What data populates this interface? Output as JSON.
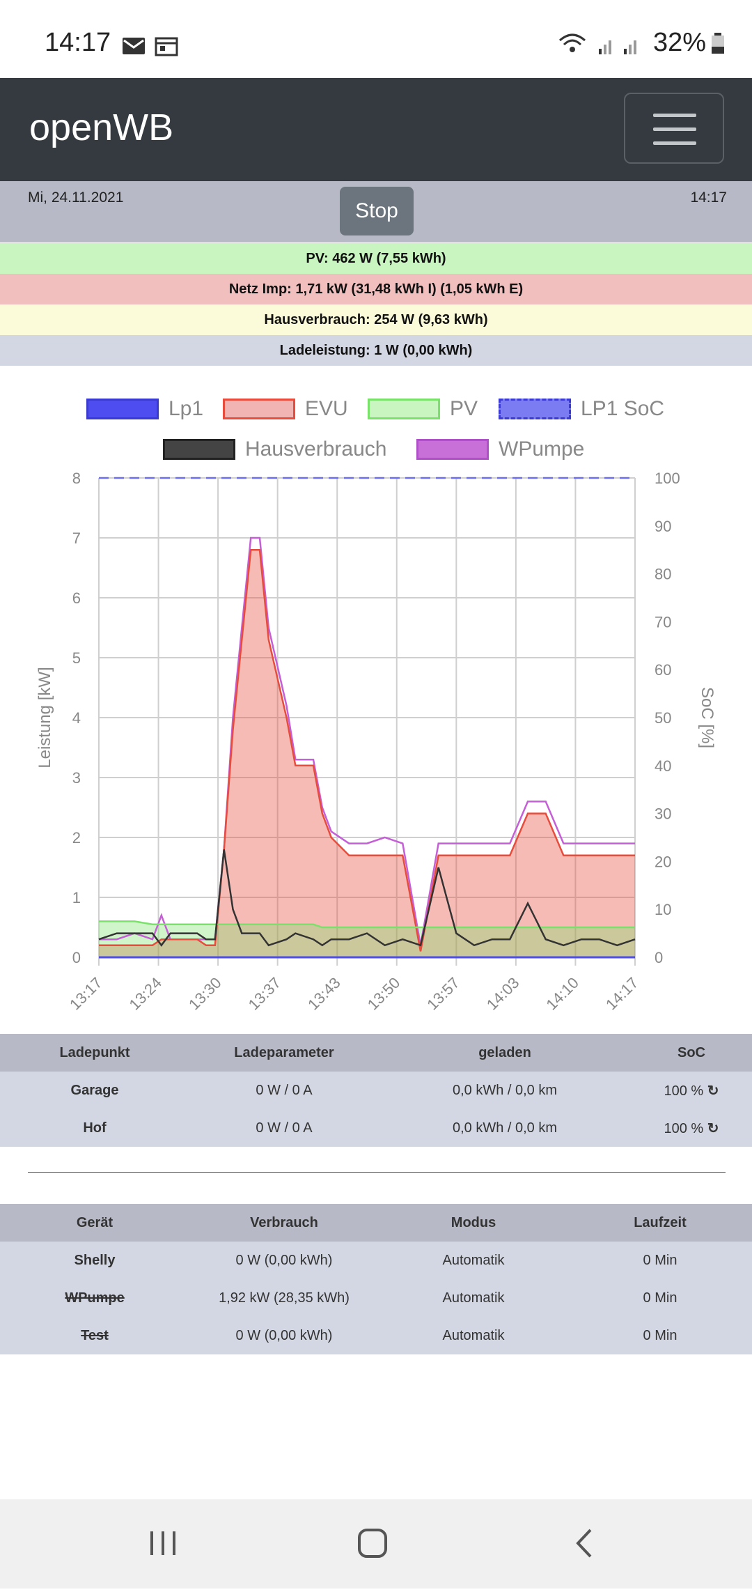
{
  "status": {
    "time": "14:17",
    "battery": "32%"
  },
  "app": {
    "title": "openWB"
  },
  "header": {
    "date": "Mi, 24.11.2021",
    "time": "14:17",
    "stop_label": "Stop"
  },
  "summary": {
    "pv": "PV: 462 W (7,55 kWh)",
    "netz": "Netz Imp: 1,71 kW (31,48 kWh I) (1,05 kWh E)",
    "haus": "Hausverbrauch: 254 W (9,63 kWh)",
    "lade": "Ladeleistung: 1 W (0,00 kWh)"
  },
  "colors": {
    "pv": "#c9f5c0",
    "netz": "#f2bfbf",
    "haus": "#fcfbd9",
    "lade": "#d3d7e3"
  },
  "chart_data": {
    "type": "area",
    "legend": [
      "Lp1",
      "EVU",
      "PV",
      "LP1 SoC",
      "Hausverbrauch",
      "WPumpe"
    ],
    "ylabel": "Leistung [kW]",
    "y2label": "SoC [%]",
    "ylim": [
      0,
      8
    ],
    "y2lim": [
      0,
      100
    ],
    "yticks": [
      "0",
      "1",
      "2",
      "3",
      "4",
      "5",
      "6",
      "7",
      "8"
    ],
    "y2ticks": [
      "0",
      "10",
      "20",
      "30",
      "40",
      "50",
      "60",
      "70",
      "80",
      "90",
      "100"
    ],
    "xticks": [
      "13:17",
      "13:24",
      "13:30",
      "13:37",
      "13:43",
      "13:50",
      "13:57",
      "14:03",
      "14:10",
      "14:17"
    ],
    "x": [
      0,
      2,
      4,
      6,
      7,
      8,
      10,
      11,
      12,
      13,
      14,
      15,
      16,
      17,
      18,
      19,
      21,
      22,
      24,
      25,
      26,
      28,
      30,
      32,
      34,
      36,
      38,
      40,
      41,
      42,
      44,
      46,
      48,
      50,
      52,
      54,
      56,
      58,
      60
    ],
    "series": [
      {
        "name": "EVU",
        "color": "#e74c3c",
        "values": [
          0.2,
          0.2,
          0.2,
          0.2,
          0.3,
          0.3,
          0.3,
          0.3,
          0.2,
          0.2,
          1.8,
          3.8,
          5.3,
          6.8,
          6.8,
          5.3,
          4.0,
          3.2,
          3.2,
          2.4,
          2.0,
          1.7,
          1.7,
          1.7,
          1.7,
          0.1,
          1.7,
          1.7,
          1.7,
          1.7,
          1.7,
          1.7,
          2.4,
          2.4,
          1.7,
          1.7,
          1.7,
          1.7,
          1.7
        ]
      },
      {
        "name": "PV",
        "color": "#7ae26a",
        "values": [
          0.6,
          0.6,
          0.6,
          0.55,
          0.55,
          0.55,
          0.55,
          0.55,
          0.55,
          0.55,
          0.55,
          0.55,
          0.55,
          0.55,
          0.55,
          0.55,
          0.55,
          0.55,
          0.55,
          0.5,
          0.5,
          0.5,
          0.5,
          0.5,
          0.5,
          0.5,
          0.5,
          0.5,
          0.5,
          0.5,
          0.5,
          0.5,
          0.5,
          0.5,
          0.5,
          0.5,
          0.5,
          0.5,
          0.5
        ]
      },
      {
        "name": "WPumpe",
        "color": "#c45fd6",
        "values": [
          0.3,
          0.3,
          0.4,
          0.3,
          0.7,
          0.3,
          0.3,
          0.3,
          0.3,
          0.3,
          1.8,
          4.0,
          5.5,
          7.0,
          7.0,
          5.5,
          4.2,
          3.3,
          3.3,
          2.5,
          2.1,
          1.9,
          1.9,
          2.0,
          1.9,
          0.2,
          1.9,
          1.9,
          1.9,
          1.9,
          1.9,
          1.9,
          2.6,
          2.6,
          1.9,
          1.9,
          1.9,
          1.9,
          1.9
        ]
      },
      {
        "name": "Hausverbrauch",
        "color": "#333333",
        "values": [
          0.3,
          0.4,
          0.4,
          0.4,
          0.2,
          0.4,
          0.4,
          0.4,
          0.3,
          0.3,
          1.8,
          0.8,
          0.4,
          0.4,
          0.4,
          0.2,
          0.3,
          0.4,
          0.3,
          0.2,
          0.3,
          0.3,
          0.4,
          0.2,
          0.3,
          0.2,
          1.5,
          0.4,
          0.3,
          0.2,
          0.3,
          0.3,
          0.9,
          0.3,
          0.2,
          0.3,
          0.3,
          0.2,
          0.3
        ]
      },
      {
        "name": "Lp1",
        "color": "#4e4ef0",
        "values": [
          0,
          0,
          0,
          0,
          0,
          0,
          0,
          0,
          0,
          0,
          0,
          0,
          0,
          0,
          0,
          0,
          0,
          0,
          0,
          0,
          0,
          0,
          0,
          0,
          0,
          0,
          0,
          0,
          0,
          0,
          0,
          0,
          0,
          0,
          0,
          0,
          0,
          0,
          0
        ]
      },
      {
        "name": "LP1 SoC",
        "color": "#6d6df0",
        "values": [
          100,
          100,
          100,
          100,
          100,
          100,
          100,
          100,
          100,
          100,
          100,
          100,
          100,
          100,
          100,
          100,
          100,
          100,
          100,
          100,
          100,
          100,
          100,
          100,
          100,
          100,
          100,
          100,
          100,
          100,
          100,
          100,
          100,
          100,
          100,
          100,
          100,
          100,
          100
        ]
      }
    ]
  },
  "ladepunkte": {
    "headers": [
      "Ladepunkt",
      "Ladeparameter",
      "geladen",
      "SoC"
    ],
    "rows": [
      {
        "name": "Garage",
        "param": "0 W / 0 A",
        "geladen": "0,0 kWh / 0,0 km",
        "soc": "100 %"
      },
      {
        "name": "Hof",
        "param": "0 W / 0 A",
        "geladen": "0,0 kWh / 0,0 km",
        "soc": "100 %"
      }
    ]
  },
  "geraete": {
    "headers": [
      "Gerät",
      "Verbrauch",
      "Modus",
      "Laufzeit"
    ],
    "rows": [
      {
        "name": "Shelly",
        "verbrauch": "0 W (0,00 kWh)",
        "modus": "Automatik",
        "laufzeit": "0 Min"
      },
      {
        "name": "WPumpe",
        "verbrauch": "1,92 kW (28,35 kWh)",
        "modus": "Automatik",
        "laufzeit": "0 Min"
      },
      {
        "name": "Test",
        "verbrauch": "0 W (0,00 kWh)",
        "modus": "Automatik",
        "laufzeit": "0 Min"
      }
    ]
  }
}
